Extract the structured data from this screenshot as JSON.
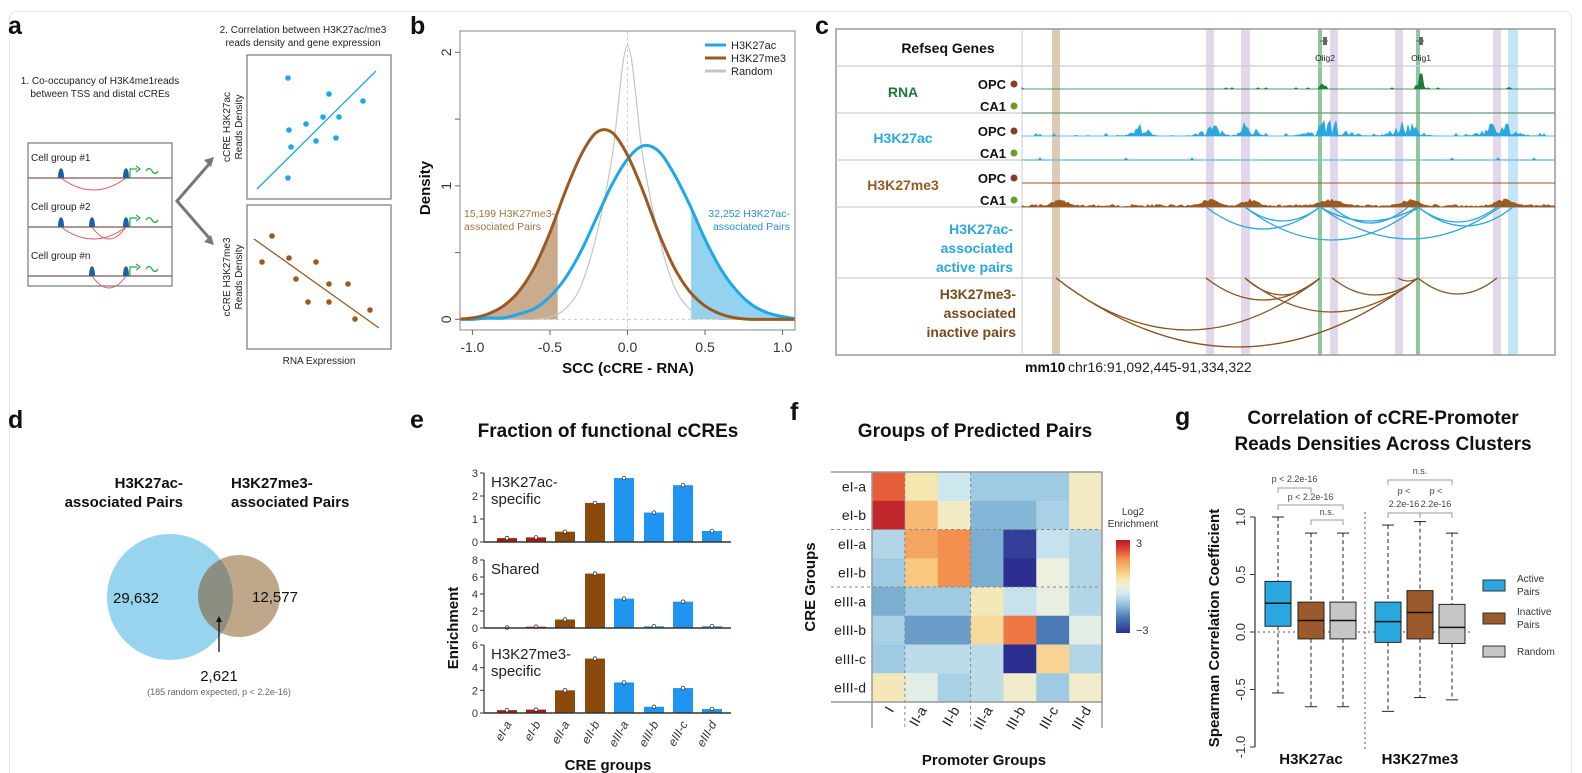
{
  "panel_labels": {
    "a": "a",
    "b": "b",
    "c": "c",
    "d": "d",
    "e": "e",
    "f": "f",
    "g": "g"
  },
  "panel_a": {
    "step1": [
      "1. Co-occupancy of H3K4me1reads",
      "between TSS and distal cCREs"
    ],
    "step2": [
      "2. Correlation between H3K27ac/me3",
      "reads density and gene expression"
    ],
    "cell_groups": [
      "Cell group #1",
      "Cell group #2",
      "Cell group #n"
    ],
    "top_ylabel": [
      "cCRE H3K27ac",
      "Reads Density"
    ],
    "bottom_ylabel": [
      "cCRE H3K27me3",
      "Reads Density"
    ],
    "xlabel": "RNA Expression",
    "colors": {
      "peak": "#1f5fa8",
      "loop": "#e0505a",
      "expression": "#2aa84a",
      "active": "#1ea7ea",
      "inactive": "#9a5a22"
    }
  },
  "panel_c": {
    "track_header": "Refseq Genes",
    "genes": [
      "Olig2",
      "Olig1"
    ],
    "tracks": [
      {
        "name": "RNA",
        "color": "#1e7a3a",
        "samples": [
          "OPC",
          "CA1"
        ]
      },
      {
        "name": "H3K27ac",
        "color": "#29a8e0",
        "samples": [
          "OPC",
          "CA1"
        ]
      },
      {
        "name": "H3K27me3",
        "color": "#9a5a22",
        "samples": [
          "OPC",
          "CA1"
        ]
      }
    ],
    "sample_colors": {
      "OPC": "#8b3a2a",
      "CA1": "#6a9a2a"
    },
    "active_pairs_label": [
      "H3K27ac-",
      "associated",
      "active pairs"
    ],
    "inactive_pairs_label": [
      "H3K27me3-",
      "associated",
      "inactive pairs"
    ],
    "genome": "mm10",
    "region": "chr16:91,092,445-91,334,322",
    "highlight_colors": {
      "tan": "#d8c0a8",
      "purple": "#ddd0e8",
      "green": "#8fc8a0",
      "blue": "#b8e0f4"
    }
  },
  "panel_d": {
    "left_title": [
      "H3K27ac-",
      "associated Pairs"
    ],
    "right_title": [
      "H3K27me3-",
      "associated Pairs"
    ],
    "left_only": "29,632",
    "right_only": "12,577",
    "overlap": "2,621",
    "note": "(185 random expected, p < 2.2e-16)",
    "colors": {
      "left": "#97d4ee",
      "right": "#bfa78c",
      "overlap": "#8a8f82"
    }
  },
  "chart_data": [
    {
      "panel": "b",
      "type": "line",
      "title": "",
      "xlabel": "SCC (cCRE - RNA)",
      "ylabel": "Density",
      "xlim": [
        -1.08,
        1.08
      ],
      "ylim": [
        -0.08,
        2.16
      ],
      "xticks": [
        -1.0,
        -0.5,
        0.0,
        0.5,
        1.0
      ],
      "xtick_labels": [
        "-1.0",
        "-0.5",
        "0.0",
        "0.5",
        "1.0"
      ],
      "yticks": [
        0,
        0.5,
        1,
        1.5,
        2
      ],
      "ytick_labels": [
        "0",
        "",
        "1",
        "",
        "2"
      ],
      "legend_position": "top-right",
      "x": [
        -1.0,
        -0.9,
        -0.8,
        -0.7,
        -0.6,
        -0.5,
        -0.4,
        -0.3,
        -0.2,
        -0.1,
        0.0,
        0.1,
        0.2,
        0.3,
        0.4,
        0.5,
        0.6,
        0.7,
        0.8,
        0.9,
        1.0
      ],
      "series": [
        {
          "name": "H3K27ac",
          "color": "#1ea7ea",
          "values": [
            0.0,
            0.01,
            0.01,
            0.04,
            0.08,
            0.17,
            0.31,
            0.51,
            0.76,
            1.01,
            1.2,
            1.3,
            1.26,
            1.09,
            0.86,
            0.6,
            0.38,
            0.22,
            0.11,
            0.05,
            0.02
          ],
          "shaded_from": 0.41,
          "shade_color": "#93d3f0"
        },
        {
          "name": "H3K27me3",
          "color": "#9a5a22",
          "values": [
            0.01,
            0.04,
            0.1,
            0.21,
            0.39,
            0.65,
            0.96,
            1.23,
            1.4,
            1.4,
            1.23,
            0.96,
            0.65,
            0.39,
            0.21,
            0.1,
            0.04,
            0.01,
            0.0,
            0.0,
            0.0
          ],
          "shaded_to": -0.45,
          "shade_color": "#c9ab8e"
        },
        {
          "name": "Random",
          "color": "#c4c4c4",
          "values": [
            0,
            0,
            0,
            0,
            0.0,
            0.02,
            0.08,
            0.25,
            0.63,
            1.21,
            2.05,
            1.21,
            0.63,
            0.25,
            0.08,
            0.02,
            0.0,
            0,
            0,
            0,
            0
          ]
        }
      ],
      "annotations": [
        {
          "lines": [
            "15,199 H3K27me3-",
            "associated Pairs"
          ],
          "color": "#a87040"
        },
        {
          "lines": [
            "32,252 H3K27ac-",
            "associated Pairs"
          ],
          "color": "#2a90d0"
        }
      ]
    },
    {
      "panel": "e",
      "type": "bar",
      "title": "Fraction of functional cCREs",
      "xlabel": "CRE groups",
      "ylabel": "Enrichment",
      "categories": [
        "eI-a",
        "eI-b",
        "eII-a",
        "eII-b",
        "eIII-a",
        "eIII-b",
        "eIII-c",
        "eIII-d"
      ],
      "bar_colors": [
        "#a81c10",
        "#a81c10",
        "#8b4a0c",
        "#8b4a0c",
        "#1f95f0",
        "#1f95f0",
        "#1f95f0",
        "#1f95f0"
      ],
      "subplots": [
        {
          "label": [
            "H3K27ac-",
            "specific"
          ],
          "ylim": [
            0,
            3
          ],
          "yticks": [
            0,
            1,
            2,
            3
          ],
          "values": [
            0.17,
            0.2,
            0.45,
            1.7,
            2.78,
            1.28,
            2.47,
            0.48
          ]
        },
        {
          "label": [
            "Shared"
          ],
          "ylim": [
            0,
            8
          ],
          "yticks": [
            0,
            2,
            4,
            6,
            8
          ],
          "values": [
            0.05,
            0.15,
            1.0,
            6.4,
            3.45,
            0.2,
            3.1,
            0.2
          ]
        },
        {
          "label": [
            "H3K27me3-",
            "specific"
          ],
          "ylim": [
            0,
            6
          ],
          "yticks": [
            0,
            2,
            4,
            6
          ],
          "values": [
            0.25,
            0.3,
            2.0,
            4.8,
            2.7,
            0.55,
            2.2,
            0.35
          ]
        }
      ]
    },
    {
      "panel": "f",
      "type": "heatmap",
      "title": "Groups of Predicted Pairs",
      "xlabel": "Promoter Groups",
      "ylabel": "CRE Groups",
      "rows": [
        "eI-a",
        "eI-b",
        "eII-a",
        "eII-b",
        "eIII-a",
        "eIII-b",
        "eIII-c",
        "eIII-d"
      ],
      "cols": [
        "I",
        "II-a",
        "II-b",
        "III-a",
        "III-b",
        "III-c",
        "III-d"
      ],
      "values": [
        [
          2.2,
          0.5,
          -0.5,
          -1.0,
          -1.0,
          -1.0,
          0.3
        ],
        [
          2.8,
          1.2,
          0.3,
          -1.3,
          -1.3,
          -0.9,
          0.3
        ],
        [
          -0.8,
          1.5,
          1.8,
          -1.4,
          -2.8,
          -0.6,
          -0.8
        ],
        [
          -1.0,
          1.0,
          1.8,
          -1.4,
          -3.0,
          0.0,
          -0.8
        ],
        [
          -1.4,
          -1.0,
          -1.0,
          0.4,
          -0.6,
          -0.1,
          -0.8
        ],
        [
          -0.9,
          -1.6,
          -1.6,
          0.7,
          2.0,
          -2.0,
          -0.2
        ],
        [
          -1.0,
          -0.7,
          -0.7,
          -0.7,
          -3.0,
          0.8,
          -0.8
        ],
        [
          0.4,
          -0.2,
          -0.9,
          -0.7,
          0.2,
          -1.0,
          0.2
        ]
      ],
      "colorbar": {
        "label": [
          "Log2",
          "Enrichment"
        ],
        "range": [
          -3,
          3
        ],
        "tick_labels": [
          "3",
          "−3"
        ]
      },
      "group_separators": {
        "after_rows": [
          2,
          4
        ],
        "after_cols": [
          1,
          3
        ]
      }
    },
    {
      "panel": "g",
      "type": "box",
      "title": [
        "Correlation of cCRE-Promoter",
        "Reads Densities Across Clusters"
      ],
      "ylabel": "Spearman Correlation Coefficient",
      "ylim": [
        -1.0,
        1.0
      ],
      "yticks": [
        -1.0,
        -0.5,
        0.0,
        0.5,
        1.0
      ],
      "ytick_labels": [
        "-1.0",
        "-0.5",
        "0.0",
        "0.5",
        "1.0"
      ],
      "groups": [
        "H3K27ac",
        "H3K27me3"
      ],
      "legend_position": "right",
      "legend": [
        {
          "label": [
            "Active",
            "Pairs"
          ],
          "color": "#29a8e0"
        },
        {
          "label": [
            "Inactive",
            "Pairs"
          ],
          "color": "#9a5a2c"
        },
        {
          "label": [
            "Random"
          ],
          "color": "#c6c6c6"
        }
      ],
      "boxes": [
        {
          "group": "H3K27ac",
          "series": 0,
          "min": -0.53,
          "q1": 0.05,
          "median": 0.25,
          "q3": 0.44,
          "max": 1.0
        },
        {
          "group": "H3K27ac",
          "series": 1,
          "min": -0.65,
          "q1": -0.06,
          "median": 0.1,
          "q3": 0.26,
          "max": 0.86
        },
        {
          "group": "H3K27ac",
          "series": 2,
          "min": -0.65,
          "q1": -0.06,
          "median": 0.1,
          "q3": 0.26,
          "max": 0.86
        },
        {
          "group": "H3K27me3",
          "series": 0,
          "min": -0.69,
          "q1": -0.09,
          "median": 0.09,
          "q3": 0.26,
          "max": 0.93
        },
        {
          "group": "H3K27me3",
          "series": 1,
          "min": -0.57,
          "q1": -0.06,
          "median": 0.17,
          "q3": 0.36,
          "max": 0.96
        },
        {
          "group": "H3K27me3",
          "series": 2,
          "min": -0.59,
          "q1": -0.1,
          "median": 0.04,
          "q3": 0.24,
          "max": 0.86
        }
      ],
      "comparisons": [
        {
          "between": [
            0,
            2
          ],
          "label": [
            "p < 2.2e-16"
          ]
        },
        {
          "between": [
            0,
            1
          ],
          "label": [
            "p < 2.2e-16"
          ]
        },
        {
          "between": [
            1,
            2
          ],
          "label": [
            "n.s."
          ]
        },
        {
          "between": [
            3,
            5
          ],
          "label": [
            "n.s."
          ]
        },
        {
          "between": [
            3,
            4
          ],
          "label": [
            "p <",
            "2.2e-16"
          ]
        },
        {
          "between": [
            4,
            5
          ],
          "label": [
            "p <",
            "2.2e-16"
          ]
        }
      ]
    }
  ]
}
